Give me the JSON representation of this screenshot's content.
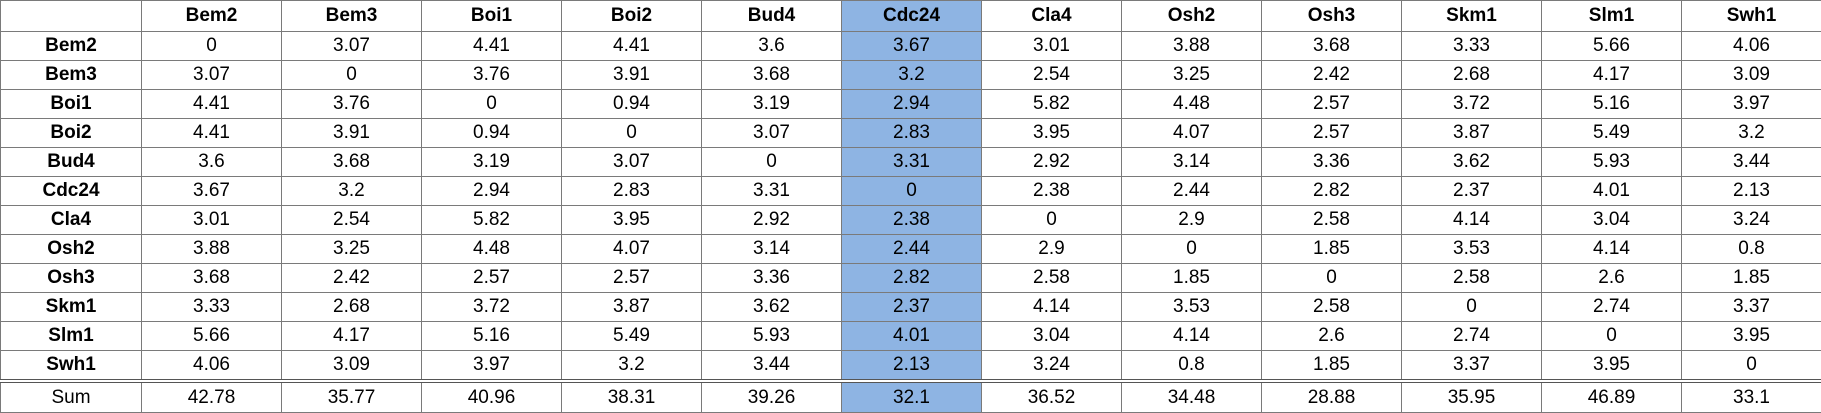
{
  "highlight_color": "#8eb4e3",
  "highlighted_column": "Cdc24",
  "columns": [
    "Bem2",
    "Bem3",
    "Boi1",
    "Boi2",
    "Bud4",
    "Cdc24",
    "Cla4",
    "Osh2",
    "Osh3",
    "Skm1",
    "Slm1",
    "Swh1"
  ],
  "rows": [
    {
      "label": "Bem2",
      "values": [
        "0",
        "3.07",
        "4.41",
        "4.41",
        "3.6",
        "3.67",
        "3.01",
        "3.88",
        "3.68",
        "3.33",
        "5.66",
        "4.06"
      ]
    },
    {
      "label": "Bem3",
      "values": [
        "3.07",
        "0",
        "3.76",
        "3.91",
        "3.68",
        "3.2",
        "2.54",
        "3.25",
        "2.42",
        "2.68",
        "4.17",
        "3.09"
      ]
    },
    {
      "label": "Boi1",
      "values": [
        "4.41",
        "3.76",
        "0",
        "0.94",
        "3.19",
        "2.94",
        "5.82",
        "4.48",
        "2.57",
        "3.72",
        "5.16",
        "3.97"
      ]
    },
    {
      "label": "Boi2",
      "values": [
        "4.41",
        "3.91",
        "0.94",
        "0",
        "3.07",
        "2.83",
        "3.95",
        "4.07",
        "2.57",
        "3.87",
        "5.49",
        "3.2"
      ]
    },
    {
      "label": "Bud4",
      "values": [
        "3.6",
        "3.68",
        "3.19",
        "3.07",
        "0",
        "3.31",
        "2.92",
        "3.14",
        "3.36",
        "3.62",
        "5.93",
        "3.44"
      ]
    },
    {
      "label": "Cdc24",
      "values": [
        "3.67",
        "3.2",
        "2.94",
        "2.83",
        "3.31",
        "0",
        "2.38",
        "2.44",
        "2.82",
        "2.37",
        "4.01",
        "2.13"
      ]
    },
    {
      "label": "Cla4",
      "values": [
        "3.01",
        "2.54",
        "5.82",
        "3.95",
        "2.92",
        "2.38",
        "0",
        "2.9",
        "2.58",
        "4.14",
        "3.04",
        "3.24"
      ]
    },
    {
      "label": "Osh2",
      "values": [
        "3.88",
        "3.25",
        "4.48",
        "4.07",
        "3.14",
        "2.44",
        "2.9",
        "0",
        "1.85",
        "3.53",
        "4.14",
        "0.8"
      ]
    },
    {
      "label": "Osh3",
      "values": [
        "3.68",
        "2.42",
        "2.57",
        "2.57",
        "3.36",
        "2.82",
        "2.58",
        "1.85",
        "0",
        "2.58",
        "2.6",
        "1.85"
      ]
    },
    {
      "label": "Skm1",
      "values": [
        "3.33",
        "2.68",
        "3.72",
        "3.87",
        "3.62",
        "2.37",
        "4.14",
        "3.53",
        "2.58",
        "0",
        "2.74",
        "3.37"
      ]
    },
    {
      "label": "Slm1",
      "values": [
        "5.66",
        "4.17",
        "5.16",
        "5.49",
        "5.93",
        "4.01",
        "3.04",
        "4.14",
        "2.6",
        "2.74",
        "0",
        "3.95"
      ]
    },
    {
      "label": "Swh1",
      "values": [
        "4.06",
        "3.09",
        "3.97",
        "3.2",
        "3.44",
        "2.13",
        "3.24",
        "0.8",
        "1.85",
        "3.37",
        "3.95",
        "0"
      ]
    }
  ],
  "sum_row": {
    "label": "Sum",
    "values": [
      "42.78",
      "35.77",
      "40.96",
      "38.31",
      "39.26",
      "32.1",
      "36.52",
      "34.48",
      "28.88",
      "35.95",
      "46.89",
      "33.1"
    ]
  }
}
